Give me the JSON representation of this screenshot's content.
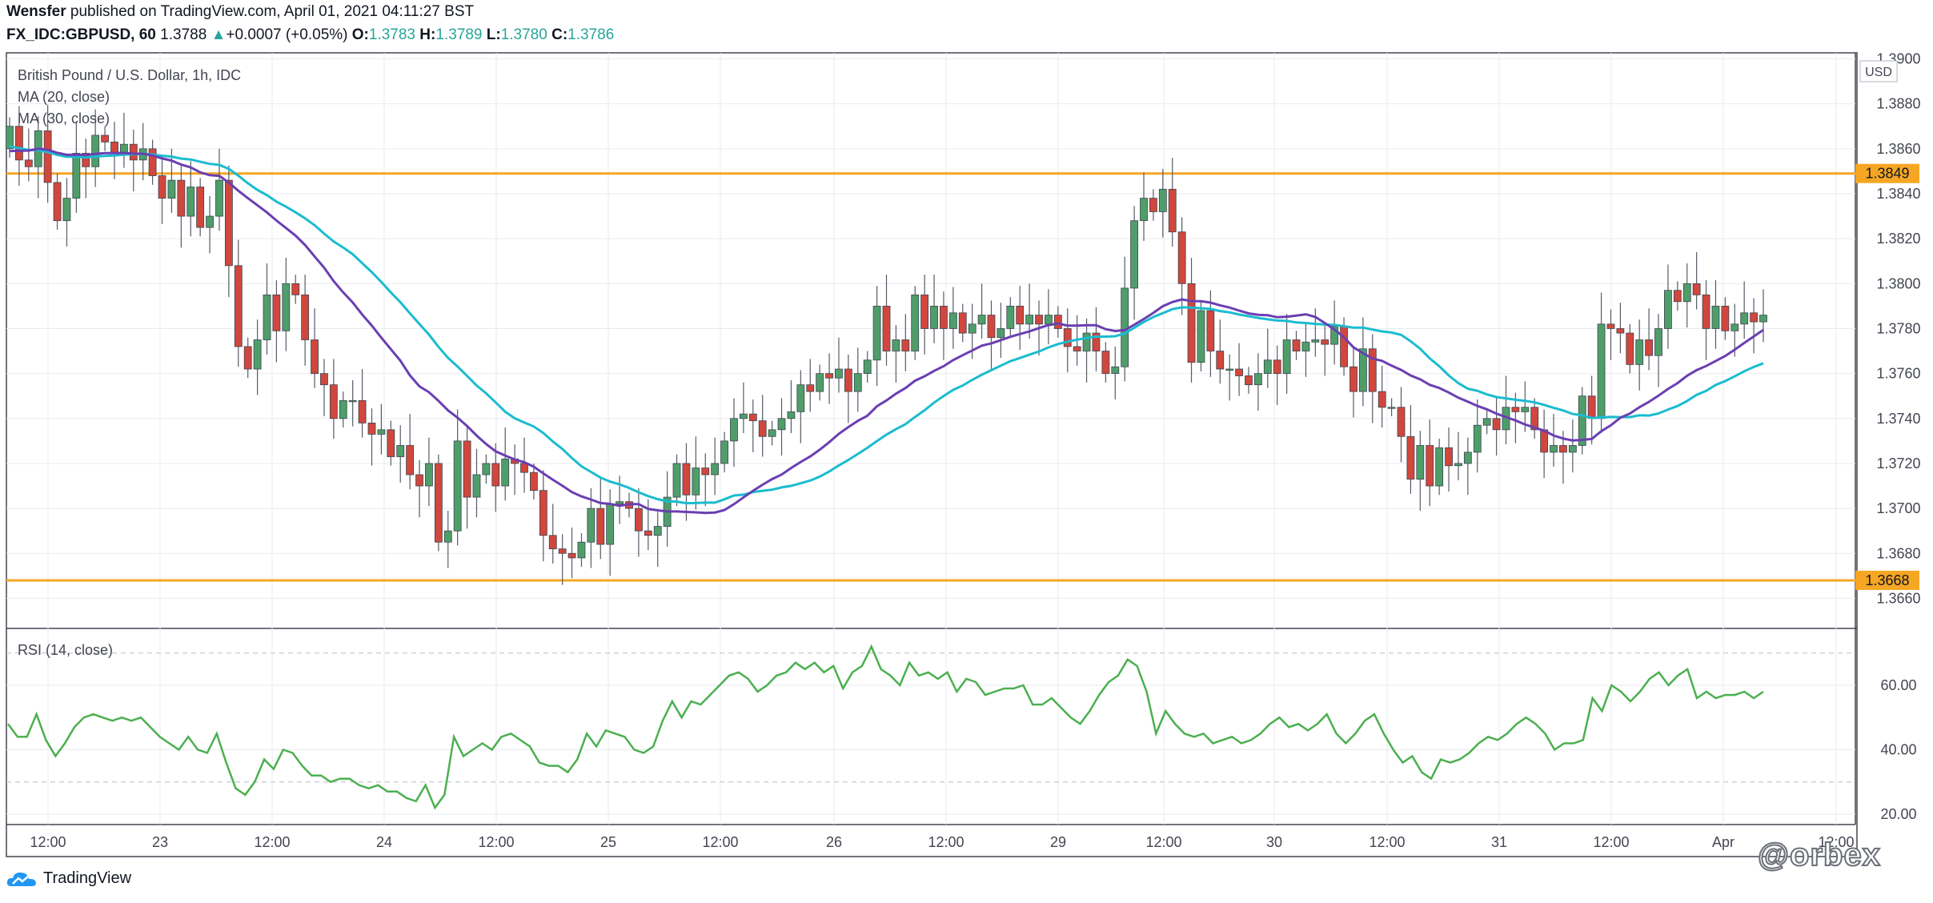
{
  "header": {
    "author": "Wensfer",
    "published_text": "published on TradingView.com, April 01, 2021 04:11:27 BST",
    "symbol": "FX_IDC:GBPUSD, 60",
    "last": "1.3788",
    "change_arrow": "▲",
    "change": "+0.0007 (+0.05%)",
    "o_label": "O:",
    "o_val": "1.3783",
    "h_label": "H:",
    "h_val": "1.3789",
    "l_label": "L:",
    "l_val": "1.3780",
    "c_label": "C:",
    "c_val": "1.3786"
  },
  "footer": {
    "logo_text": "TradingView",
    "watermark": "@orbex"
  },
  "colors": {
    "up": "#4f9e6a",
    "down": "#d1473d",
    "ma20": "#6a3fb2",
    "ma30": "#1bbcd0",
    "hline": "#f5a623",
    "rsi": "#4caf50",
    "grid": "#e9ebef"
  },
  "chart_data": {
    "type": "candlestick",
    "title": "British Pound / U.S. Dollar, 1h, IDC",
    "currency": "USD",
    "y_ticks": [
      "1.3900",
      "1.3880",
      "1.3860",
      "1.3840",
      "1.3820",
      "1.3800",
      "1.3780",
      "1.3760",
      "1.3740",
      "1.3720",
      "1.3700",
      "1.3680",
      "1.3660"
    ],
    "ylim": [
      1.3645,
      1.39
    ],
    "levels": [
      {
        "label": "1.3849",
        "value": 1.3849
      },
      {
        "label": "1.3668",
        "value": 1.3668
      }
    ],
    "x_ticks": [
      "12:00",
      "23",
      "12:00",
      "24",
      "12:00",
      "25",
      "12:00",
      "26",
      "12:00",
      "29",
      "12:00",
      "30",
      "12:00",
      "31",
      "12:00",
      "Apr",
      "12:00"
    ],
    "indicators": [
      {
        "name": "MA (20, close)",
        "values": [
          1.3853,
          1.3852,
          1.3851,
          1.385,
          1.3851,
          1.3852,
          1.3853,
          1.3853,
          1.3854,
          1.3854,
          1.3853,
          1.3851,
          1.3849,
          1.3847,
          1.3843,
          1.3837,
          1.3829,
          1.3821,
          1.3813,
          1.3806,
          1.38,
          1.3793,
          1.3786,
          1.3778,
          1.377,
          1.3762,
          1.3754,
          1.3747,
          1.374,
          1.3734,
          1.3728,
          1.3723,
          1.3718,
          1.3713,
          1.3708,
          1.3705,
          1.3702,
          1.37,
          1.3699,
          1.3698,
          1.3697,
          1.3697,
          1.3697,
          1.3697,
          1.3697,
          1.3697,
          1.3697,
          1.3696,
          1.3696,
          1.3695,
          1.3694,
          1.3693,
          1.3693,
          1.3695,
          1.3698,
          1.3701,
          1.3705,
          1.371,
          1.3715,
          1.3721,
          1.3727,
          1.3734,
          1.3742,
          1.3749,
          1.3756,
          1.3763,
          1.3769,
          1.3774,
          1.3778,
          1.3781,
          1.3784,
          1.3786,
          1.3785,
          1.3784,
          1.3783,
          1.3785,
          1.3789,
          1.3793,
          1.3794,
          1.3792,
          1.3789,
          1.3786,
          1.3784,
          1.3783,
          1.3784,
          1.3786,
          1.3787,
          1.3786,
          1.3782,
          1.3775,
          1.3766,
          1.3757,
          1.375,
          1.3745,
          1.374,
          1.3736,
          1.3733,
          1.3731,
          1.3733,
          1.374,
          1.3744,
          1.375,
          1.3757,
          1.3764,
          1.3769,
          1.3773,
          1.3776,
          1.378,
          1.3782,
          1.3784
        ]
      },
      {
        "name": "MA (30, close)",
        "values": []
      }
    ],
    "rsi": {
      "name": "RSI (14, close)",
      "y_ticks": [
        "60.00",
        "40.00",
        "20.00"
      ],
      "ylim": [
        17,
        77
      ],
      "bands": [
        70,
        30
      ],
      "values": [
        48,
        44,
        44,
        51,
        43,
        38,
        42,
        47,
        50,
        51,
        50,
        49,
        50,
        49,
        50,
        47,
        44,
        42,
        40,
        44,
        40,
        39,
        45,
        36,
        28,
        26,
        30,
        37,
        34,
        40,
        39,
        35,
        32,
        32,
        30,
        31,
        31,
        29,
        28,
        29,
        27,
        27,
        25,
        24,
        29,
        22,
        26,
        44,
        38,
        40,
        42,
        40,
        44,
        45,
        43,
        41,
        36,
        35,
        35,
        33,
        37,
        45,
        41,
        46,
        45,
        44,
        40,
        39,
        41,
        49,
        55,
        50,
        55,
        54,
        57,
        60,
        63,
        64,
        62,
        58,
        60,
        63,
        64,
        67,
        65,
        67,
        64,
        66,
        59,
        64,
        66,
        72,
        65,
        63,
        60,
        67,
        63,
        64,
        62,
        64,
        58,
        62,
        61,
        57,
        58,
        59,
        59,
        60,
        54,
        54,
        56,
        53,
        50,
        48,
        52,
        57,
        61,
        63,
        68,
        66,
        58,
        45,
        52,
        48,
        45,
        44,
        45,
        42,
        43,
        44,
        42,
        43,
        45,
        48,
        50,
        47,
        48,
        46,
        48,
        51,
        45,
        42,
        45,
        49,
        51,
        45,
        40,
        36,
        38,
        33,
        31,
        37,
        36,
        37,
        39,
        42,
        44,
        43,
        45,
        48,
        50,
        48,
        45,
        40,
        42,
        42,
        43,
        56,
        52,
        60,
        58,
        55,
        58,
        62,
        64,
        60,
        63,
        65,
        56,
        58,
        56,
        57,
        57,
        58,
        56,
        58
      ],
      "note": ""
    }
  }
}
